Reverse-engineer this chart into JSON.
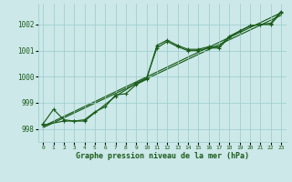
{
  "xlabel": "Graphe pression niveau de la mer (hPa)",
  "x": [
    0,
    1,
    2,
    3,
    4,
    5,
    6,
    7,
    8,
    9,
    10,
    11,
    12,
    13,
    14,
    15,
    16,
    17,
    18,
    19,
    20,
    21,
    22,
    23
  ],
  "line1": [
    998.2,
    998.75,
    998.35,
    998.3,
    998.35,
    998.65,
    998.85,
    999.3,
    999.35,
    999.7,
    999.9,
    1001.2,
    1001.4,
    1001.2,
    1001.05,
    1001.05,
    1001.15,
    1001.15,
    1001.55,
    1001.75,
    1001.95,
    1002.0,
    1002.05,
    1002.5
  ],
  "line2_x": [
    0,
    2,
    3,
    4,
    7,
    9,
    10,
    11,
    12,
    13,
    14,
    15,
    16,
    17,
    18,
    19,
    20,
    21,
    22,
    23
  ],
  "line2_y": [
    998.15,
    998.3,
    998.3,
    998.3,
    999.25,
    999.75,
    999.95,
    1001.1,
    1001.35,
    1001.15,
    1001.0,
    1001.0,
    1001.1,
    1001.1,
    1001.5,
    1001.75,
    1001.95,
    1002.0,
    1002.0,
    1002.45
  ],
  "trend1_x": [
    0,
    23
  ],
  "trend1_y": [
    998.1,
    1002.45
  ],
  "trend2_x": [
    0,
    23
  ],
  "trend2_y": [
    998.05,
    1002.35
  ],
  "bg_color": "#cce8e8",
  "grid_color": "#99cccc",
  "line_color": "#1a5c1a",
  "tick_color": "#1a5c1a",
  "label_color": "#1a5c1a",
  "ylim": [
    997.5,
    1002.8
  ],
  "xlim": [
    -0.5,
    23.5
  ],
  "yticks": [
    998,
    999,
    1000,
    1001,
    1002
  ],
  "xticks": [
    0,
    1,
    2,
    3,
    4,
    5,
    6,
    7,
    8,
    9,
    10,
    11,
    12,
    13,
    14,
    15,
    16,
    17,
    18,
    19,
    20,
    21,
    22,
    23
  ],
  "xtick_labels": [
    "0",
    "1",
    "2",
    "3",
    "4",
    "5",
    "6",
    "7",
    "8",
    "9",
    "10",
    "11",
    "12",
    "13",
    "14",
    "15",
    "16",
    "17",
    "18",
    "19",
    "20",
    "21",
    "22",
    "23"
  ],
  "ytick_labels": [
    "998",
    "999",
    "1000",
    "1001",
    "1002"
  ]
}
